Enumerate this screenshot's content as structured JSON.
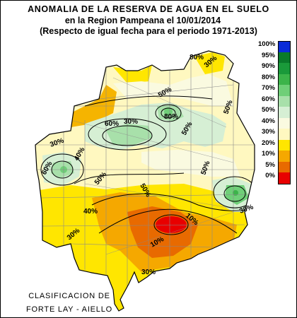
{
  "header": {
    "title_line1": "ANOMALIA DE LA RESERVA DE AGUA EN EL SUELO",
    "title_line2": "en la Region Pampeana el  10/01/2014",
    "title_line3": "(Respecto de igual fecha para el periodo 1971-2013)"
  },
  "legend": {
    "items": [
      {
        "label": "100%",
        "color": "#0a2bd8"
      },
      {
        "label": "95%",
        "color": "#0a7a2a"
      },
      {
        "label": "90%",
        "color": "#1a9a3a"
      },
      {
        "label": "80%",
        "color": "#3cb44a"
      },
      {
        "label": "70%",
        "color": "#6fcf78"
      },
      {
        "label": "60%",
        "color": "#a8e0aa"
      },
      {
        "label": "50%",
        "color": "#d6efd4"
      },
      {
        "label": "40%",
        "color": "#fafae0"
      },
      {
        "label": "30%",
        "color": "#fff8c0"
      },
      {
        "label": "20%",
        "color": "#ffe600"
      },
      {
        "label": "10%",
        "color": "#f5a800"
      },
      {
        "label": "5%",
        "color": "#e86a00"
      },
      {
        "label": "0%",
        "color": "#e80000"
      }
    ]
  },
  "map": {
    "contour_labels": [
      "80%",
      "30%",
      "50%",
      "50%",
      "30%",
      "60%",
      "80%",
      "50%",
      "30%",
      "60%",
      "40%",
      "50%",
      "50%",
      "50%",
      "30%",
      "10%",
      "10%",
      "30%",
      "40%",
      "30%"
    ]
  },
  "credit": {
    "line1": "CLASIFICACION DE",
    "line2": "FORTE LAY - AIELLO"
  },
  "colors": {
    "outline": "#000000",
    "province_border": "#8a8a8a",
    "background": "#ffffff"
  }
}
